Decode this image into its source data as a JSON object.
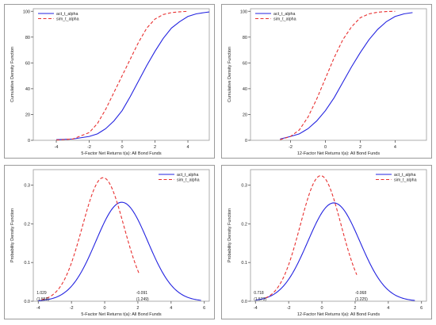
{
  "colors": {
    "act": "#2323e0",
    "sim": "#e83030",
    "axis": "#555555",
    "frame": "#9a9a9a"
  },
  "chart_data": [
    {
      "type": "line",
      "xlabel": "5-Factor Net Returns t(a): All Bond Funds",
      "ylabel": "Cumulative Density Function",
      "xlim": [
        -5.4,
        5.3
      ],
      "ylim": [
        0,
        102
      ],
      "xticks": [
        "-4",
        "-2",
        "0",
        "2",
        "4"
      ],
      "yticks": [
        "0",
        "20",
        "40",
        "60",
        "80",
        "100"
      ],
      "legend_position": "top-left",
      "annotations": [],
      "series": [
        {
          "name": "act_t_alpha",
          "style": "solid",
          "x": [
            -4,
            -3,
            -2,
            -1.5,
            -1,
            -0.5,
            0,
            0.5,
            1,
            1.5,
            2,
            2.5,
            3,
            3.5,
            4,
            4.5,
            5,
            5.3
          ],
          "y": [
            0.5,
            1,
            3,
            5,
            9,
            15,
            23,
            34,
            46,
            58,
            69,
            79,
            87,
            92,
            96,
            98,
            99,
            99.5
          ]
        },
        {
          "name": "sim_t_alpha",
          "style": "dashed",
          "x": [
            -4,
            -3,
            -2,
            -1.5,
            -1,
            -0.5,
            0,
            0.5,
            1,
            1.5,
            2,
            2.5,
            3,
            3.5,
            4
          ],
          "y": [
            0.2,
            1,
            6,
            13,
            24,
            37,
            50,
            63,
            76,
            87,
            94,
            97.5,
            99,
            99.6,
            100
          ]
        }
      ]
    },
    {
      "type": "line",
      "xlabel": "12-Factor Net Returns t(a): All Bond Funds",
      "ylabel": "Cumulative Density Function",
      "xlim": [
        -4.3,
        5.8
      ],
      "ylim": [
        0,
        102
      ],
      "xticks": [
        "-2",
        "0",
        "2",
        "4"
      ],
      "yticks": [
        "0",
        "20",
        "40",
        "60",
        "80",
        "100"
      ],
      "legend_position": "top-left",
      "annotations": [],
      "series": [
        {
          "name": "act_t_alpha",
          "style": "solid",
          "x": [
            -2.6,
            -2,
            -1.5,
            -1,
            -0.5,
            0,
            0.5,
            1,
            1.5,
            2,
            2.5,
            3,
            3.5,
            4,
            4.5,
            5
          ],
          "y": [
            1,
            3,
            5,
            9,
            15,
            23,
            33,
            45,
            57,
            68,
            78,
            86,
            92,
            96,
            98,
            99
          ]
        },
        {
          "name": "sim_t_alpha",
          "style": "dashed",
          "x": [
            -2.6,
            -2,
            -1.5,
            -1,
            -0.5,
            0,
            0.5,
            1,
            1.5,
            2,
            2.5,
            3,
            3.5,
            4
          ],
          "y": [
            0.5,
            3,
            8,
            18,
            32,
            48,
            64,
            78,
            88,
            95,
            98,
            99.3,
            99.8,
            100
          ]
        }
      ]
    },
    {
      "type": "line",
      "xlabel": "5-Factor Net Returns t(a): All Bond Funds",
      "ylabel": "Probability Density Function",
      "xlim": [
        -4.3,
        6.3
      ],
      "ylim": [
        0,
        0.34
      ],
      "xticks": [
        "-4",
        "-2",
        "0",
        "2",
        "4",
        "6"
      ],
      "yticks": [
        "0.0",
        "0.1",
        "0.2",
        "0.3"
      ],
      "legend_position": "top-right",
      "annotations": [
        {
          "text": "1.029",
          "x": -4.1,
          "y": 0.018,
          "align": "start"
        },
        {
          "text": "(1.559)",
          "x": -4.1,
          "y": 0.002,
          "align": "start"
        },
        {
          "text": "-0.091",
          "x": 1.9,
          "y": 0.018,
          "align": "start"
        },
        {
          "text": "(1.249)",
          "x": 1.9,
          "y": 0.002,
          "align": "start"
        }
      ],
      "series": [
        {
          "name": "act_t_alpha",
          "style": "solid",
          "dist": "normal",
          "mean": 1.03,
          "sd": 1.56,
          "from": -4,
          "to": 5.8
        },
        {
          "name": "sim_t_alpha",
          "style": "dashed",
          "dist": "normal",
          "mean": -0.09,
          "sd": 1.25,
          "from": -3.8,
          "to": 2.1
        }
      ]
    },
    {
      "type": "line",
      "xlabel": "12-Factor Net Returns t(a): All Bond Funds",
      "ylabel": "Probability Density Function",
      "xlim": [
        -4.3,
        6.3
      ],
      "ylim": [
        0,
        0.34
      ],
      "xticks": [
        "-4",
        "-2",
        "0",
        "2",
        "4",
        "6"
      ],
      "yticks": [
        "0.0",
        "0.1",
        "0.2",
        "0.3"
      ],
      "legend_position": "top-right",
      "annotations": [
        {
          "text": "0.718",
          "x": -4.1,
          "y": 0.018,
          "align": "start"
        },
        {
          "text": "(1.573)",
          "x": -4.1,
          "y": 0.002,
          "align": "start"
        },
        {
          "text": "-0.068",
          "x": 2.0,
          "y": 0.018,
          "align": "start"
        },
        {
          "text": "(1.225)",
          "x": 2.0,
          "y": 0.002,
          "align": "start"
        }
      ],
      "series": [
        {
          "name": "act_t_alpha",
          "style": "solid",
          "dist": "normal",
          "mean": 0.72,
          "sd": 1.57,
          "from": -4,
          "to": 5.6
        },
        {
          "name": "sim_t_alpha",
          "style": "dashed",
          "dist": "normal",
          "mean": -0.07,
          "sd": 1.23,
          "from": -3.4,
          "to": 2.1
        }
      ]
    }
  ]
}
